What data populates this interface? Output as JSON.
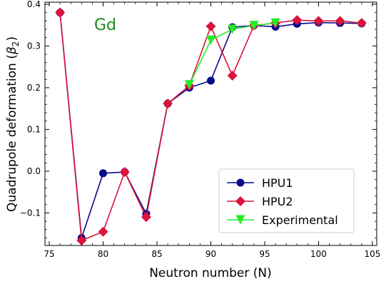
{
  "chart_data": {
    "type": "line",
    "annotation": {
      "text": "Gd",
      "color": "#1a8a1a"
    },
    "xlabel": "Neutron number (N)",
    "ylabel_prefix": "Quadrupole deformation (",
    "ylabel_symbol": "β",
    "ylabel_sub": "2",
    "ylabel_suffix": ")",
    "xlim": [
      74.6,
      105.4
    ],
    "ylim": [
      -0.178,
      0.405
    ],
    "x_ticks": [
      75,
      80,
      85,
      90,
      95,
      100,
      105
    ],
    "x_tick_labels": [
      "75",
      "80",
      "85",
      "90",
      "95",
      "100",
      "105"
    ],
    "y_ticks": [
      -0.1,
      0.0,
      0.1,
      0.2,
      0.3,
      0.4
    ],
    "y_tick_labels": [
      "−0.1",
      "0.0",
      "0.1",
      "0.2",
      "0.3",
      "0.4"
    ],
    "grid": false,
    "legend_position": "lower-right",
    "series": [
      {
        "name": "HPU1",
        "color": "#0a0a8c",
        "marker": "circle",
        "x": [
          76,
          78,
          80,
          82,
          84,
          86,
          88,
          90,
          92,
          94,
          96,
          98,
          100,
          102,
          104
        ],
        "y": [
          0.38,
          -0.16,
          -0.005,
          -0.002,
          -0.102,
          0.162,
          0.2,
          0.217,
          0.345,
          0.349,
          0.346,
          0.353,
          0.356,
          0.355,
          0.354
        ]
      },
      {
        "name": "HPU2",
        "color": "#dc143c",
        "marker": "diamond",
        "x": [
          76,
          78,
          80,
          82,
          84,
          86,
          88,
          90,
          92,
          94,
          96,
          98,
          100,
          102,
          104
        ],
        "y": [
          0.38,
          -0.166,
          -0.145,
          -0.002,
          -0.11,
          0.162,
          0.205,
          0.347,
          0.229,
          0.349,
          0.355,
          0.362,
          0.36,
          0.36,
          0.355
        ]
      },
      {
        "name": "Experimental",
        "color": "#22ee22",
        "marker": "triangle-down",
        "x": [
          88,
          90,
          92,
          94,
          96
        ],
        "y": [
          0.207,
          0.314,
          0.34,
          0.349,
          0.355
        ]
      }
    ]
  }
}
